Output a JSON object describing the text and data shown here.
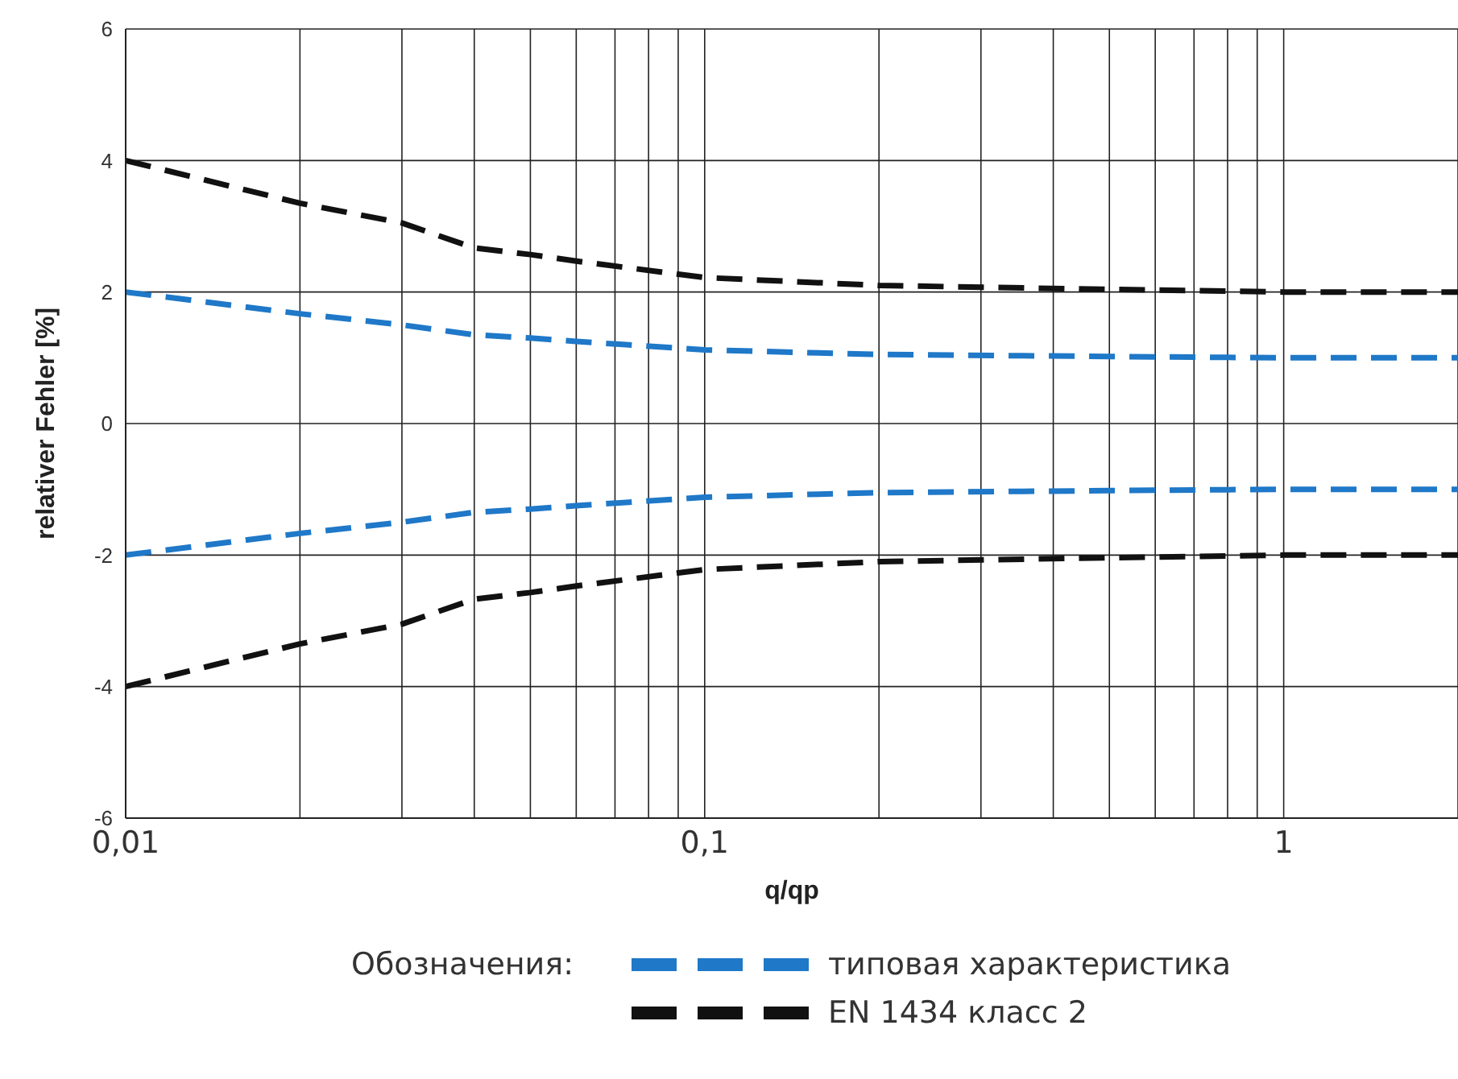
{
  "chart_data": {
    "type": "line",
    "xlabel": "q/qp",
    "ylabel": "relativer Fehler [%]",
    "legend_title": "Обозначения:",
    "log": "x",
    "grid": true,
    "legend": "bottom",
    "line_style": "dashed",
    "marker": "none",
    "xlim": [
      0.01,
      2
    ],
    "ylim": [
      -6,
      6
    ],
    "xticks": [
      {
        "value": 0.01,
        "label": "0,01"
      },
      {
        "value": 0.02,
        "label": null
      },
      {
        "value": 0.03,
        "label": null
      },
      {
        "value": 0.04,
        "label": null
      },
      {
        "value": 0.05,
        "label": null
      },
      {
        "value": 0.06,
        "label": null
      },
      {
        "value": 0.07,
        "label": null
      },
      {
        "value": 0.08,
        "label": null
      },
      {
        "value": 0.09,
        "label": null
      },
      {
        "value": 0.1,
        "label": "0,1"
      },
      {
        "value": 0.2,
        "label": null
      },
      {
        "value": 0.3,
        "label": null
      },
      {
        "value": 0.4,
        "label": null
      },
      {
        "value": 0.5,
        "label": null
      },
      {
        "value": 0.6,
        "label": null
      },
      {
        "value": 0.7,
        "label": null
      },
      {
        "value": 0.8,
        "label": null
      },
      {
        "value": 0.9,
        "label": null
      },
      {
        "value": 1,
        "label": "1"
      },
      {
        "value": 2,
        "label": null
      }
    ],
    "yticks": [
      -6,
      -4,
      -2,
      0,
      2,
      4,
      6
    ],
    "x": [
      0.01,
      0.02,
      0.03,
      0.04,
      0.05,
      0.06,
      0.1,
      0.2,
      0.5,
      1,
      2
    ],
    "series": [
      {
        "name": "типовая характеристика",
        "color": "#1f78c8",
        "values": [
          2,
          1.67,
          1.5,
          1.35,
          1.3,
          1.25,
          1.12,
          1.05,
          1.02,
          1,
          1
        ]
      },
      {
        "color": "#1f78c8",
        "values": [
          -2,
          -1.67,
          -1.5,
          -1.35,
          -1.3,
          -1.25,
          -1.12,
          -1.05,
          -1.02,
          -1,
          -1
        ]
      },
      {
        "name": "EN 1434 класс 2",
        "color": "#111111",
        "values": [
          4,
          3.35,
          3.05,
          2.67,
          2.57,
          2.47,
          2.22,
          2.1,
          2.04,
          2,
          2
        ]
      },
      {
        "color": "#111111",
        "values": [
          -4,
          -3.35,
          -3.05,
          -2.67,
          -2.57,
          -2.47,
          -2.22,
          -2.1,
          -2.04,
          -2,
          -2
        ]
      }
    ]
  }
}
